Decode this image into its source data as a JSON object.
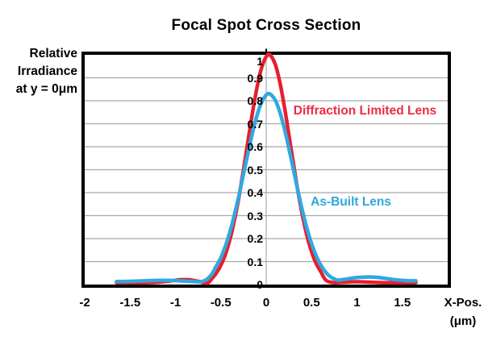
{
  "title": "Focal Spot Cross Section",
  "y_axis": {
    "lines": [
      "Relative",
      "Irradiance",
      "at y = 0μm"
    ]
  },
  "x_axis": {
    "label_lines": [
      "X-Pos.",
      "(μm)"
    ]
  },
  "chart_data": {
    "type": "line",
    "title": "Focal Spot Cross Section",
    "xlabel": "X-Pos. (μm)",
    "ylabel": "Relative Irradiance at y = 0μm",
    "xlim": [
      -2,
      2
    ],
    "ylim": [
      0,
      1
    ],
    "x_ticks": [
      -2,
      -1.5,
      -1,
      -0.5,
      0,
      0.5,
      1,
      1.5
    ],
    "x_tick_labels": [
      "-2",
      "-1.5",
      "-1",
      "-0.5",
      "0",
      "0.5",
      "1",
      "1.5"
    ],
    "y_ticks": [
      1,
      0.9,
      0.8,
      0.7,
      0.6,
      0.5,
      0.4,
      0.3,
      0.2,
      0.1,
      0
    ],
    "y_tick_labels": [
      "1",
      "0.9",
      "0.8",
      "0.7",
      "0.6",
      "0.5",
      "0.4",
      "0.3",
      "0.2",
      "0.1",
      "0"
    ],
    "grid": {
      "horizontal": true,
      "vertical_zero_line": true,
      "color": "#a9a9a9"
    },
    "legend_position": "inline-annotations",
    "series": [
      {
        "name": "Diffraction Limited Lens",
        "color": "#e71f2d",
        "peak": 1.0,
        "x": [
          -1.65,
          -1.5,
          -1.35,
          -1.2,
          -1.05,
          -0.95,
          -0.85,
          -0.75,
          -0.65,
          -0.6,
          -0.55,
          -0.5,
          -0.45,
          -0.4,
          -0.35,
          -0.3,
          -0.25,
          -0.2,
          -0.15,
          -0.1,
          -0.05,
          0,
          0.04,
          0.1,
          0.15,
          0.2,
          0.25,
          0.3,
          0.35,
          0.4,
          0.45,
          0.5,
          0.55,
          0.6,
          0.66,
          0.75,
          0.85,
          0.95,
          1.05,
          1.15,
          1.3,
          1.45,
          1.65
        ],
        "y": [
          0.008,
          0.008,
          0.008,
          0.01,
          0.016,
          0.021,
          0.021,
          0.014,
          0.006,
          0.025,
          0.05,
          0.084,
          0.131,
          0.196,
          0.28,
          0.382,
          0.501,
          0.627,
          0.751,
          0.861,
          0.945,
          0.992,
          1.0,
          0.958,
          0.881,
          0.775,
          0.652,
          0.526,
          0.405,
          0.299,
          0.211,
          0.142,
          0.092,
          0.057,
          0.018,
          0.008,
          0.01,
          0.012,
          0.012,
          0.01,
          0.008,
          0.008,
          0.008
        ]
      },
      {
        "name": "As-Built Lens",
        "color": "#31a8e0",
        "peak": 0.83,
        "x": [
          -1.65,
          -1.5,
          -1.35,
          -1.2,
          -1.05,
          -0.95,
          -0.85,
          -0.75,
          -0.7,
          -0.65,
          -0.6,
          -0.55,
          -0.5,
          -0.45,
          -0.4,
          -0.35,
          -0.3,
          -0.25,
          -0.2,
          -0.15,
          -0.1,
          -0.05,
          0,
          0.04,
          0.1,
          0.15,
          0.2,
          0.25,
          0.3,
          0.35,
          0.4,
          0.45,
          0.5,
          0.55,
          0.6,
          0.65,
          0.7,
          0.78,
          0.85,
          0.95,
          1.05,
          1.15,
          1.25,
          1.4,
          1.55,
          1.65
        ],
        "y": [
          0.013,
          0.014,
          0.016,
          0.018,
          0.018,
          0.016,
          0.014,
          0.012,
          0.014,
          0.024,
          0.045,
          0.08,
          0.117,
          0.167,
          0.229,
          0.304,
          0.389,
          0.481,
          0.574,
          0.662,
          0.738,
          0.794,
          0.825,
          0.83,
          0.802,
          0.751,
          0.679,
          0.593,
          0.5,
          0.407,
          0.32,
          0.243,
          0.178,
          0.126,
          0.086,
          0.057,
          0.036,
          0.02,
          0.022,
          0.028,
          0.032,
          0.033,
          0.03,
          0.022,
          0.017,
          0.016
        ]
      }
    ],
    "annotations": [
      {
        "text": "Diffraction Limited Lens",
        "x": 0.3,
        "y": 0.754,
        "color": "#ee2b45",
        "name": "diffraction-limited-lens-label"
      },
      {
        "text": "As-Built Lens",
        "x": 0.49,
        "y": 0.358,
        "color": "#2ea7e0",
        "name": "as-built-lens-label"
      }
    ]
  }
}
